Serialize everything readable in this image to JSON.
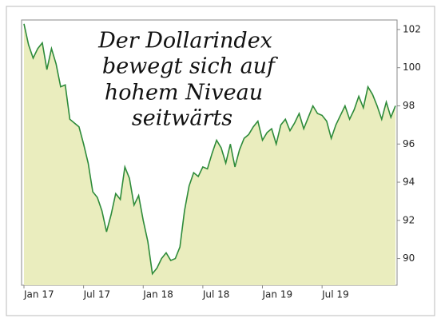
{
  "chart_data": {
    "type": "area",
    "title": [
      "Der Dollarindex",
      "bewegt sich auf",
      "hohem Niveau",
      "seitwärts"
    ],
    "categories": [
      "Jan 17",
      null,
      null,
      null,
      null,
      null,
      null,
      null,
      null,
      null,
      null,
      null,
      null,
      "Jul 17",
      null,
      null,
      null,
      null,
      null,
      null,
      null,
      null,
      null,
      null,
      null,
      null,
      "Jan 18",
      null,
      null,
      null,
      null,
      null,
      null,
      null,
      null,
      null,
      null,
      null,
      null,
      "Jul 18",
      null,
      null,
      null,
      null,
      null,
      null,
      null,
      null,
      null,
      null,
      null,
      null,
      "Jan 19",
      null,
      null,
      null,
      null,
      null,
      null,
      null,
      null,
      null,
      null,
      null,
      null,
      "Jul 19",
      null,
      null,
      null,
      null,
      null,
      null,
      null,
      null,
      null,
      null,
      null,
      null,
      null,
      null,
      null,
      null
    ],
    "values": [
      102.3,
      101.2,
      100.5,
      101.0,
      101.3,
      99.9,
      101.0,
      100.2,
      99.0,
      99.1,
      97.3,
      97.1,
      96.9,
      96.0,
      95.0,
      93.5,
      93.2,
      92.5,
      91.4,
      92.3,
      93.4,
      93.1,
      94.8,
      94.2,
      92.8,
      93.3,
      92.0,
      90.9,
      89.2,
      89.5,
      90.0,
      90.3,
      89.9,
      90.0,
      90.6,
      92.5,
      93.8,
      94.5,
      94.3,
      94.8,
      94.7,
      95.5,
      96.2,
      95.8,
      95.0,
      96.0,
      94.8,
      95.7,
      96.3,
      96.5,
      96.9,
      97.2,
      96.2,
      96.6,
      96.8,
      96.0,
      97.0,
      97.3,
      96.7,
      97.1,
      97.6,
      96.8,
      97.4,
      98.0,
      97.6,
      97.5,
      97.2,
      96.3,
      97.0,
      97.5,
      98.0,
      97.3,
      97.8,
      98.5,
      97.9,
      99.0,
      98.6,
      98.0,
      97.3,
      98.2,
      97.4,
      98.0
    ],
    "color": "#2e8b3a",
    "fill": "#eaedbe",
    "ylim": [
      88.6,
      102.5
    ],
    "yticks": [
      90,
      92,
      94,
      96,
      98,
      100,
      102
    ]
  }
}
